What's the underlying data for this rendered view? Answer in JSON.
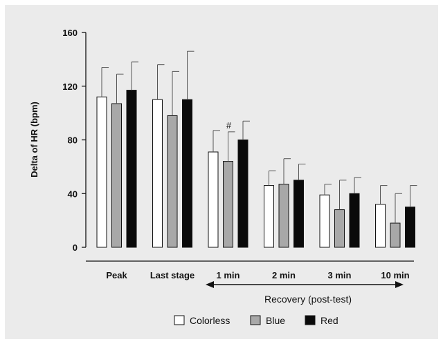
{
  "chart_data": {
    "type": "bar",
    "ylabel": "Delta of HR (bpm)",
    "xlabel": "",
    "ylim": [
      0,
      160
    ],
    "yticks": [
      0,
      40,
      80,
      120,
      160
    ],
    "categories": [
      "Peak",
      "Last stage",
      "1 min",
      "2 min",
      "3 min",
      "10 min"
    ],
    "series": [
      {
        "name": "Colorless",
        "color": "#ffffff",
        "values": [
          112,
          110,
          71,
          46,
          39,
          32
        ],
        "errors": [
          22,
          26,
          16,
          11,
          8,
          14
        ]
      },
      {
        "name": "Blue",
        "color": "#a8a8a8",
        "values": [
          107,
          98,
          64,
          47,
          28,
          18
        ],
        "errors": [
          22,
          33,
          22,
          19,
          22,
          22
        ]
      },
      {
        "name": "Red",
        "color": "#0a0a0a",
        "values": [
          117,
          110,
          80,
          50,
          40,
          30
        ],
        "errors": [
          21,
          36,
          14,
          12,
          12,
          16
        ]
      }
    ],
    "annotations": [
      {
        "text": "#",
        "category": "1 min",
        "series": "Blue"
      }
    ],
    "recovery_label": "Recovery (post-test)",
    "legend": {
      "position": "bottom",
      "labels": [
        "Colorless",
        "Blue",
        "Red"
      ]
    },
    "grid": false
  }
}
